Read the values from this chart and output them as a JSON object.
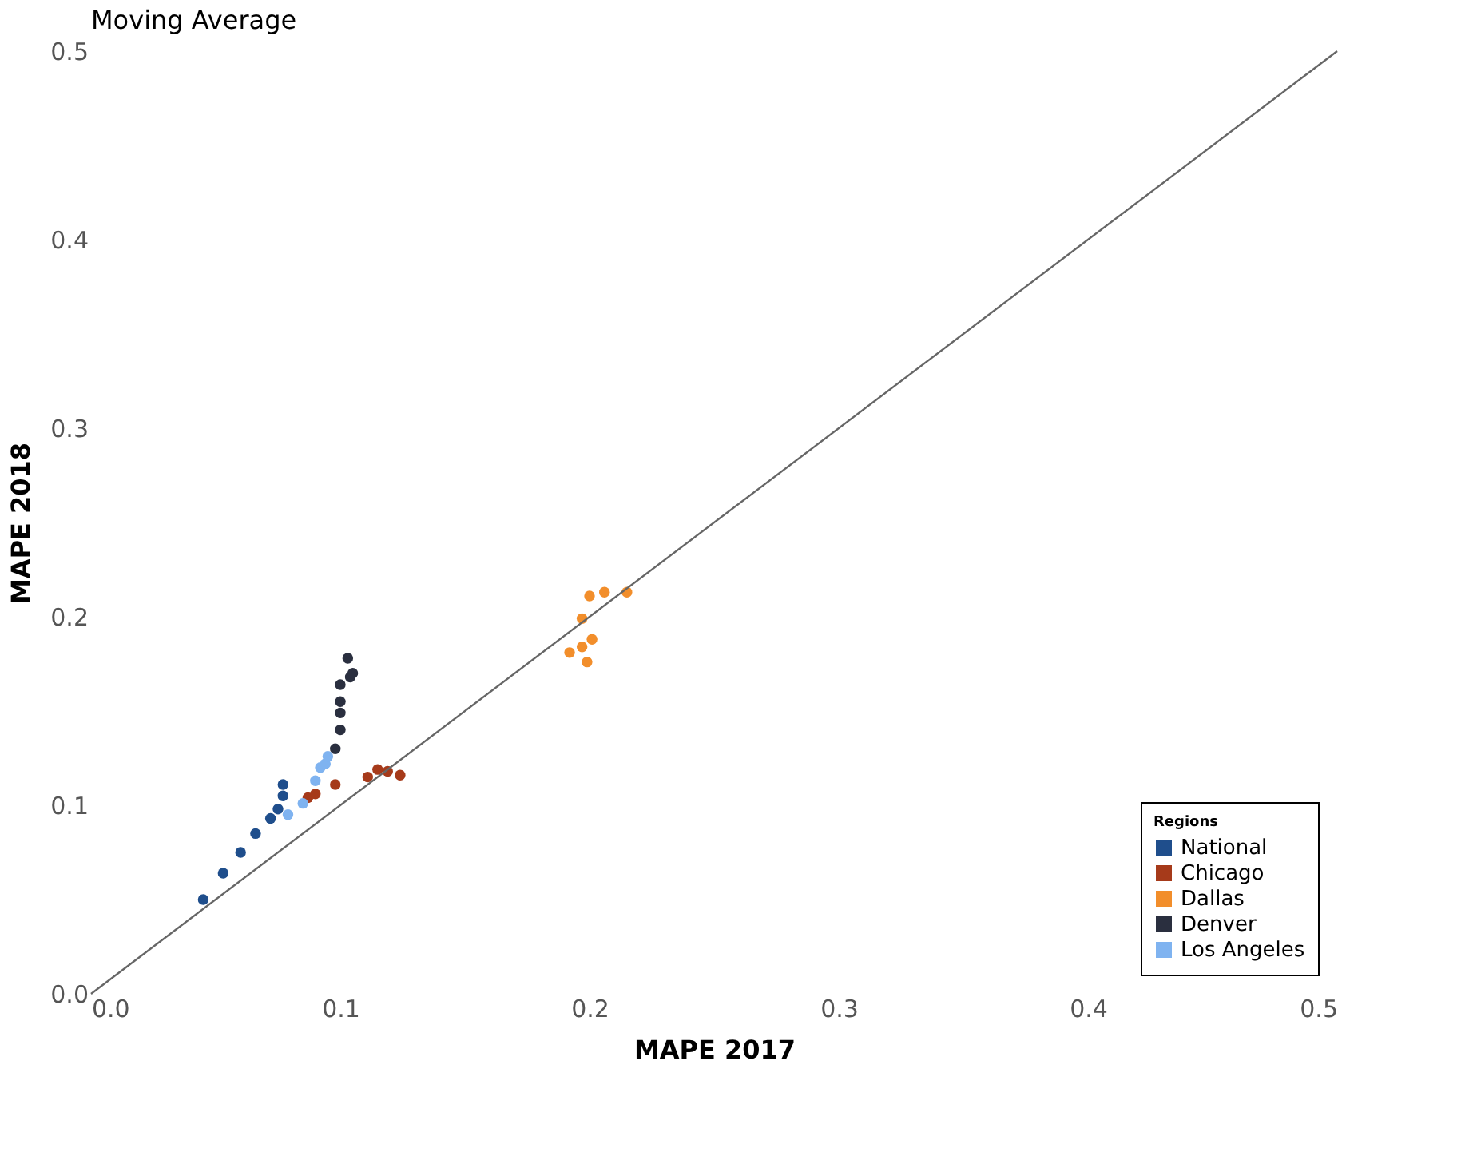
{
  "chart_data": {
    "type": "scatter",
    "title": "Moving Average",
    "xlabel": "MAPE 2017",
    "ylabel": "MAPE 2018",
    "legend_title": "Regions",
    "xlim": [
      0,
      0.5
    ],
    "ylim": [
      0,
      0.5
    ],
    "xticks": [
      {
        "value": 0,
        "label": "0.0"
      },
      0.1,
      0.2,
      0.3,
      0.4,
      0.5
    ],
    "yticks": [
      {
        "value": 0,
        "label": "0.0"
      },
      0.1,
      0.2,
      0.3,
      0.4,
      0.5
    ],
    "grid": false,
    "legend": "bottom right",
    "marker": "circle",
    "series": [
      {
        "name": "National",
        "color": "#1f4e8c",
        "x": [
          0.045,
          0.053,
          0.06,
          0.066,
          0.072,
          0.075,
          0.077,
          0.077
        ],
        "values": [
          0.05,
          0.064,
          0.075,
          0.085,
          0.093,
          0.098,
          0.105,
          0.111
        ]
      },
      {
        "name": "Chicago",
        "color": "#a63a1a",
        "x": [
          0.087,
          0.09,
          0.098,
          0.111,
          0.115,
          0.119,
          0.124
        ],
        "values": [
          0.104,
          0.106,
          0.111,
          0.115,
          0.119,
          0.118,
          0.116
        ]
      },
      {
        "name": "Dallas",
        "color": "#f28e2b",
        "x": [
          0.2,
          0.206,
          0.215,
          0.197,
          0.201,
          0.192,
          0.197,
          0.199
        ],
        "values": [
          0.211,
          0.213,
          0.213,
          0.199,
          0.188,
          0.181,
          0.184,
          0.176
        ]
      },
      {
        "name": "Denver",
        "color": "#2a2f3f",
        "x": [
          0.098,
          0.1,
          0.1,
          0.1,
          0.1,
          0.104,
          0.105,
          0.103
        ],
        "values": [
          0.13,
          0.14,
          0.149,
          0.155,
          0.164,
          0.168,
          0.17,
          0.178
        ]
      },
      {
        "name": "Los Angeles",
        "color": "#7fb3f0",
        "x": [
          0.079,
          0.085,
          0.09,
          0.092,
          0.094,
          0.095
        ],
        "values": [
          0.095,
          0.101,
          0.113,
          0.12,
          0.122,
          0.126
        ]
      },
      {
        "type": "line",
        "color": "#666666",
        "line_style": "solid",
        "marker": "none",
        "x": [
          0,
          0.5
        ],
        "values": [
          0,
          0.5
        ]
      }
    ]
  }
}
